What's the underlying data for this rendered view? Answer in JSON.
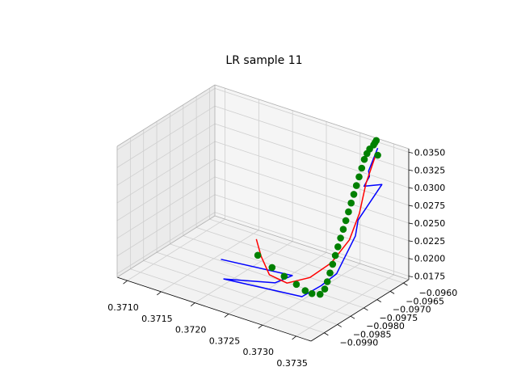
{
  "chart_data": {
    "type": "3d-scatter-line",
    "title": "LR sample 11",
    "x_ticks": [
      "0.3710",
      "0.3715",
      "0.3720",
      "0.3725",
      "0.3730",
      "0.3735"
    ],
    "y_ticks": [
      "−0.0990",
      "−0.0985",
      "−0.0980",
      "−0.0975",
      "−0.0970",
      "−0.0965",
      "−0.0960"
    ],
    "z_ticks": [
      "0.0175",
      "0.0200",
      "0.0225",
      "0.0250",
      "0.0275",
      "0.0300",
      "0.0325",
      "0.0350"
    ],
    "ylim": [
      -0.0995,
      -0.0958
    ],
    "zlim": [
      0.017,
      0.0355
    ],
    "grid": true,
    "series": [
      {
        "kind": "line",
        "color": "#0000ff",
        "points": [
          {
            "x": 0.3733,
            "y": -0.0959,
            "z": 0.0345
          },
          {
            "x": 0.3734,
            "y": -0.0965,
            "z": 0.033
          },
          {
            "x": 0.37345,
            "y": -0.0966,
            "z": 0.0326
          },
          {
            "x": 0.37345,
            "y": -0.0968,
            "z": 0.0317
          },
          {
            "x": 0.3734,
            "y": -0.096,
            "z": 0.0299
          },
          {
            "x": 0.3734,
            "y": -0.0969,
            "z": 0.027
          },
          {
            "x": 0.3734,
            "y": -0.097,
            "z": 0.025
          },
          {
            "x": 0.3732,
            "y": -0.0972,
            "z": 0.0195
          },
          {
            "x": 0.37305,
            "y": -0.0974,
            "z": 0.0178
          },
          {
            "x": 0.373,
            "y": -0.098,
            "z": 0.0175
          },
          {
            "x": 0.372,
            "y": -0.0984,
            "z": 0.0178
          },
          {
            "x": 0.3726,
            "y": -0.098,
            "z": 0.0182
          },
          {
            "x": 0.3727,
            "y": -0.0976,
            "z": 0.0186
          },
          {
            "x": 0.3718,
            "y": -0.098,
            "z": 0.019
          }
        ]
      },
      {
        "kind": "line",
        "color": "#ff0000",
        "points": [
          {
            "x": 0.3733,
            "y": -0.096,
            "z": 0.0335
          },
          {
            "x": 0.3734,
            "y": -0.0966,
            "z": 0.0315
          },
          {
            "x": 0.37342,
            "y": -0.0969,
            "z": 0.028
          },
          {
            "x": 0.37335,
            "y": -0.0971,
            "z": 0.0245
          },
          {
            "x": 0.3732,
            "y": -0.0974,
            "z": 0.0215
          },
          {
            "x": 0.373,
            "y": -0.0977,
            "z": 0.0195
          },
          {
            "x": 0.3727,
            "y": -0.0978,
            "z": 0.018
          },
          {
            "x": 0.3724,
            "y": -0.0977,
            "z": 0.018
          },
          {
            "x": 0.3722,
            "y": -0.0975,
            "z": 0.0195
          },
          {
            "x": 0.37205,
            "y": -0.0973,
            "z": 0.021
          }
        ]
      },
      {
        "kind": "scatter",
        "color": "#008000",
        "points": [
          {
            "x": 0.3732,
            "y": -0.0957,
            "z": 0.0348
          },
          {
            "x": 0.3732,
            "y": -0.09575,
            "z": 0.0346
          },
          {
            "x": 0.3732,
            "y": -0.0958,
            "z": 0.0344
          },
          {
            "x": 0.37318,
            "y": -0.0959,
            "z": 0.034
          },
          {
            "x": 0.37318,
            "y": -0.096,
            "z": 0.0336
          },
          {
            "x": 0.37318,
            "y": -0.0961,
            "z": 0.033
          },
          {
            "x": 0.37318,
            "y": -0.0962,
            "z": 0.032
          },
          {
            "x": 0.37318,
            "y": -0.0963,
            "z": 0.031
          },
          {
            "x": 0.37318,
            "y": -0.0964,
            "z": 0.03
          },
          {
            "x": 0.37318,
            "y": -0.0965,
            "z": 0.029
          },
          {
            "x": 0.37318,
            "y": -0.0966,
            "z": 0.028
          },
          {
            "x": 0.37318,
            "y": -0.0967,
            "z": 0.027
          },
          {
            "x": 0.37318,
            "y": -0.0968,
            "z": 0.026
          },
          {
            "x": 0.37318,
            "y": -0.0969,
            "z": 0.025
          },
          {
            "x": 0.37318,
            "y": -0.097,
            "z": 0.024
          },
          {
            "x": 0.37318,
            "y": -0.0971,
            "z": 0.023
          },
          {
            "x": 0.37318,
            "y": -0.0972,
            "z": 0.022
          },
          {
            "x": 0.37318,
            "y": -0.0973,
            "z": 0.021
          },
          {
            "x": 0.37318,
            "y": -0.0974,
            "z": 0.02
          },
          {
            "x": 0.37318,
            "y": -0.0975,
            "z": 0.019
          },
          {
            "x": 0.37318,
            "y": -0.0976,
            "z": 0.0182
          },
          {
            "x": 0.37315,
            "y": -0.0977,
            "z": 0.0176
          },
          {
            "x": 0.37305,
            "y": -0.09775,
            "z": 0.0175
          },
          {
            "x": 0.37295,
            "y": -0.09775,
            "z": 0.0176
          },
          {
            "x": 0.3728,
            "y": -0.0977,
            "z": 0.0179
          },
          {
            "x": 0.3726,
            "y": -0.09765,
            "z": 0.0183
          },
          {
            "x": 0.3724,
            "y": -0.0976,
            "z": 0.0188
          },
          {
            "x": 0.37215,
            "y": -0.0975,
            "z": 0.0195
          },
          {
            "x": 0.3733,
            "y": -0.0959,
            "z": 0.0335
          }
        ]
      }
    ]
  }
}
